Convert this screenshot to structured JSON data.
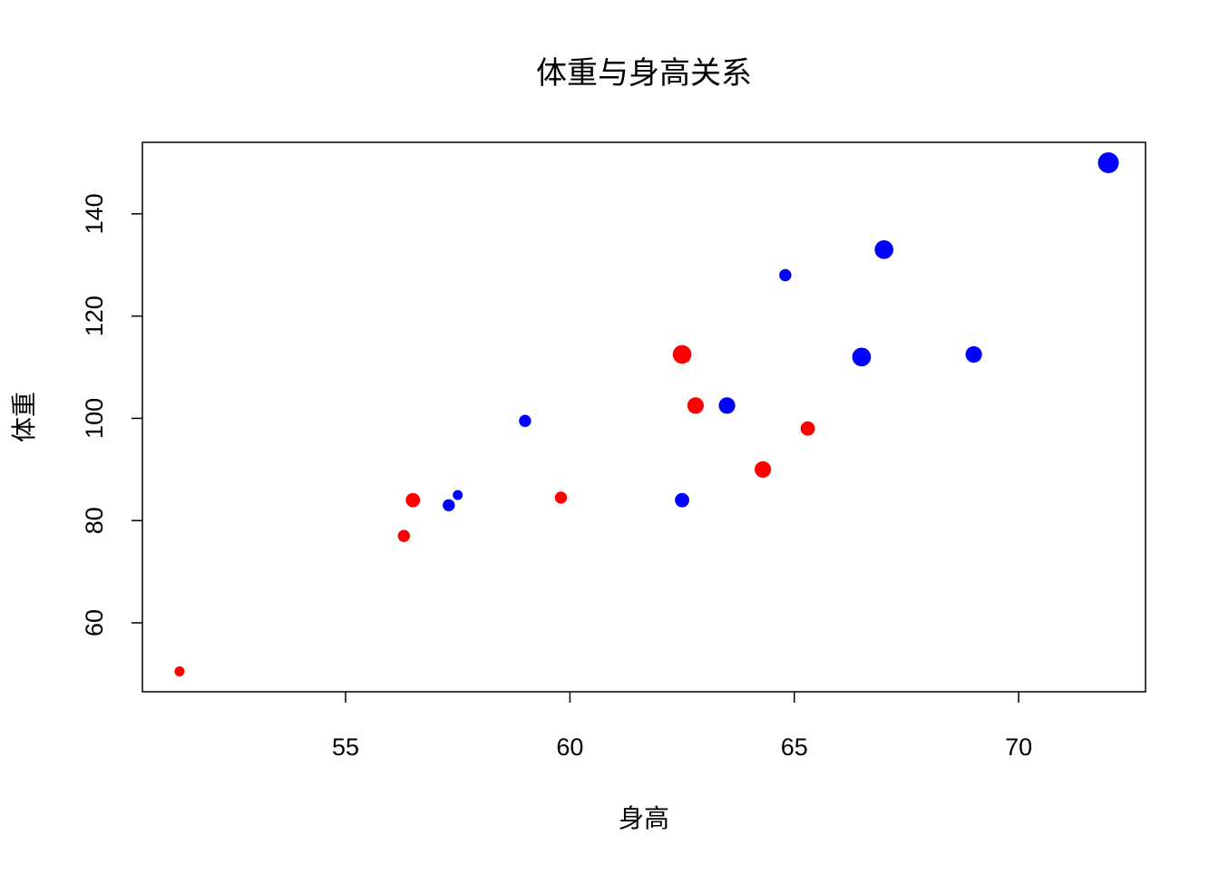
{
  "chart_data": {
    "type": "scatter",
    "title": "体重与身高关系",
    "x_label": "身高",
    "y_label": "体重",
    "series": [
      {
        "color": "#ff0000",
        "x": [
          56.5,
          65.3,
          62.8,
          59.8,
          62.5,
          51.3,
          64.3,
          56.3,
          66.5
        ],
        "values": [
          84,
          98,
          102.5,
          84.5,
          112.5,
          50.5,
          90,
          77,
          112
        ],
        "sizes": [
          13,
          13,
          14,
          12,
          15,
          11,
          14,
          12,
          15
        ]
      },
      {
        "color": "#0000ff",
        "x": [
          69,
          63.5,
          57.3,
          62.5,
          59,
          72,
          64.8,
          67,
          57.5,
          66.5
        ],
        "values": [
          112.5,
          102.5,
          83,
          84,
          99.5,
          150,
          128,
          133,
          85,
          112
        ],
        "sizes": [
          14,
          14,
          12,
          13,
          12,
          16,
          12,
          15,
          11,
          15
        ]
      }
    ],
    "xlim": [
      50.472,
      72.828
    ],
    "ylim": [
      46.52,
      153.98
    ],
    "xticks": [
      55,
      60,
      65,
      70
    ],
    "yticks": [
      60,
      80,
      100,
      120,
      140
    ]
  }
}
